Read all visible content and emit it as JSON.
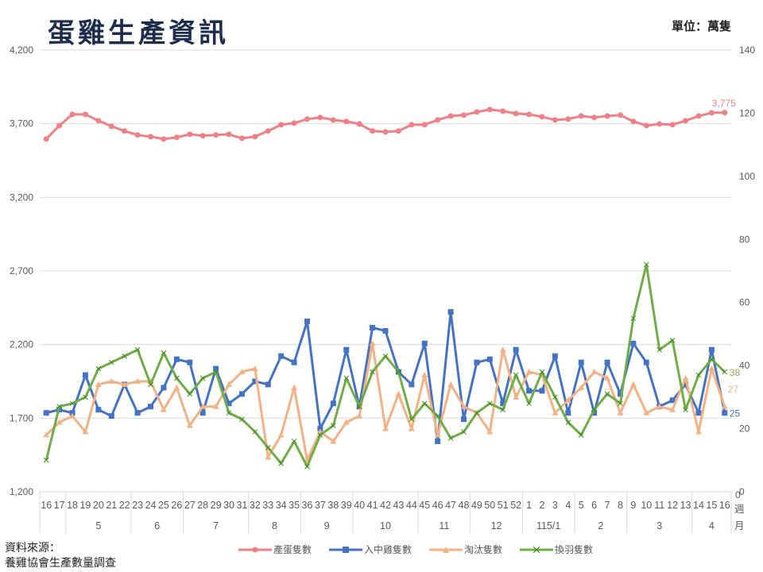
{
  "header": {
    "title": "蛋雞生產資訊",
    "unit": "單位：萬隻"
  },
  "footer": {
    "source_label": "資料來源：",
    "source_text": "養雞協會生產數量調查"
  },
  "axis": {
    "left_ticks": [
      "4,200",
      "3,700",
      "3,200",
      "2,700",
      "2,200",
      "1,700",
      "1,200"
    ],
    "right_ticks": [
      "140",
      "120",
      "100",
      "80",
      "60",
      "40",
      "20",
      "0"
    ],
    "week_label": "週",
    "month_label": "月",
    "corner_zero": "0"
  },
  "legend": [
    {
      "name": "產蛋隻數",
      "color": "#f07f86"
    },
    {
      "name": "入中雞隻數",
      "color": "#4472c4"
    },
    {
      "name": "淘汰隻數",
      "color": "#f4b183"
    },
    {
      "name": "換羽隻數",
      "color": "#70ad47"
    }
  ],
  "chart_data": {
    "type": "line",
    "title": "蛋雞生產資訊",
    "unit": "萬隻",
    "xlabel": "週 / 月",
    "categories_week": [
      "16",
      "17",
      "18",
      "19",
      "20",
      "21",
      "22",
      "23",
      "24",
      "25",
      "26",
      "27",
      "28",
      "29",
      "30",
      "31",
      "32",
      "33",
      "34",
      "35",
      "36",
      "37",
      "38",
      "39",
      "40",
      "41",
      "42",
      "43",
      "44",
      "45",
      "46",
      "47",
      "48",
      "49",
      "50",
      "51",
      "52",
      "1",
      "2",
      "3",
      "4",
      "5",
      "6",
      "7",
      "8",
      "9",
      "10",
      "11",
      "12",
      "13",
      "14",
      "15",
      "16"
    ],
    "month_groups": [
      {
        "label": "",
        "count": 2
      },
      {
        "label": "5",
        "count": 5
      },
      {
        "label": "6",
        "count": 4
      },
      {
        "label": "7",
        "count": 5
      },
      {
        "label": "8",
        "count": 4
      },
      {
        "label": "9",
        "count": 4
      },
      {
        "label": "10",
        "count": 5
      },
      {
        "label": "11",
        "count": 4
      },
      {
        "label": "12",
        "count": 4
      },
      {
        "label": "115/1",
        "count": 4
      },
      {
        "label": "2",
        "count": 4
      },
      {
        "label": "3",
        "count": 5
      },
      {
        "label": "4",
        "count": 3
      }
    ],
    "left_axis": {
      "label": "產蛋隻數",
      "ylim": [
        1200,
        4200
      ],
      "ticks": [
        1200,
        1700,
        2200,
        2700,
        3200,
        3700,
        4200
      ]
    },
    "right_axis": {
      "ylim": [
        0,
        140
      ],
      "ticks": [
        0,
        20,
        40,
        60,
        80,
        100,
        120,
        140
      ]
    },
    "grid": true,
    "legend_position": "bottom",
    "series": [
      {
        "name": "產蛋隻數",
        "axis": "left",
        "color": "#f07f86",
        "marker": "circle",
        "last_label": "3,775",
        "values": [
          3596,
          3687,
          3763,
          3763,
          3720,
          3682,
          3650,
          3623,
          3612,
          3596,
          3607,
          3628,
          3618,
          3623,
          3628,
          3601,
          3612,
          3650,
          3693,
          3704,
          3731,
          3742,
          3725,
          3715,
          3698,
          3650,
          3644,
          3650,
          3693,
          3693,
          3725,
          3752,
          3758,
          3779,
          3796,
          3785,
          3769,
          3763,
          3747,
          3725,
          3731,
          3752,
          3742,
          3752,
          3758,
          3715,
          3687,
          3698,
          3693,
          3720,
          3752,
          3774,
          3775
        ]
      },
      {
        "name": "入中雞隻數",
        "axis": "right",
        "color": "#4472c4",
        "marker": "square",
        "last_label": "25",
        "values": [
          25,
          26,
          25,
          37,
          26,
          24,
          34,
          25,
          27,
          33,
          42,
          41,
          25,
          39,
          28,
          31,
          35,
          34,
          43,
          41,
          54,
          20,
          28,
          45,
          27,
          52,
          51,
          38,
          34,
          47,
          16,
          57,
          23,
          41,
          42,
          28,
          45,
          32,
          32,
          43,
          25,
          41,
          25,
          41,
          31,
          47,
          41,
          27,
          29,
          34,
          25,
          45,
          25
        ]
      },
      {
        "name": "淘汰隻數",
        "axis": "right",
        "color": "#f4b183",
        "marker": "triangle",
        "last_label": "27",
        "values": [
          18,
          22,
          24,
          19,
          34,
          35,
          34,
          35,
          35,
          26,
          33,
          21,
          27,
          27,
          34,
          38,
          39,
          11,
          18,
          33,
          10,
          19,
          16,
          22,
          24,
          47,
          20,
          31,
          20,
          37,
          18,
          34,
          27,
          25,
          19,
          45,
          30,
          38,
          37,
          25,
          29,
          33,
          38,
          36,
          25,
          34,
          25,
          27,
          26,
          36,
          19,
          39,
          27
        ]
      },
      {
        "name": "換羽隻數",
        "axis": "right",
        "color": "#70ad47",
        "marker": "x",
        "last_label": "38",
        "values": [
          10,
          27,
          28,
          30,
          39,
          41,
          43,
          45,
          34,
          44,
          36,
          31,
          36,
          38,
          25,
          23,
          19,
          14,
          9,
          16,
          8,
          18,
          21,
          36,
          27,
          38,
          43,
          38,
          23,
          28,
          24,
          17,
          19,
          25,
          28,
          26,
          37,
          28,
          38,
          30,
          22,
          18,
          26,
          31,
          28,
          55,
          72,
          45,
          48,
          26,
          37,
          42,
          38
        ]
      }
    ]
  }
}
